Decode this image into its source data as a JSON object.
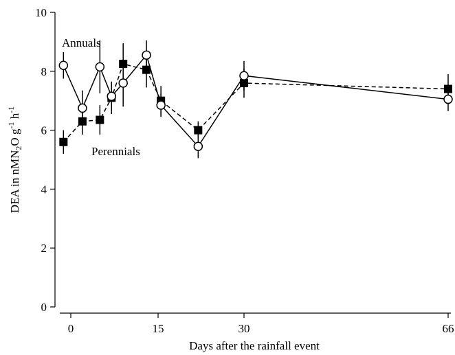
{
  "chart_data": {
    "type": "line",
    "title": "",
    "xlabel": "Days after the rainfall event",
    "ylabel": {
      "base": "DEA in nMN",
      "sub": "2",
      "mid": "O g",
      "sup1": "-1",
      "mid2": " h",
      "sup2": "-1"
    },
    "ylim": [
      0,
      10
    ],
    "yticks": [
      0,
      2,
      4,
      6,
      8,
      10
    ],
    "xticks": [
      0,
      15,
      30,
      66
    ],
    "x_display": {
      "breaks": [
        0,
        15,
        30,
        66
      ],
      "note": "x axis is piecewise-scaled; 30 to 66 segment is compressed"
    },
    "grid": false,
    "legend": "none",
    "annotations": [
      {
        "text": "Annuals",
        "x": 0,
        "y": 8.6
      },
      {
        "text": "Perennials",
        "x": 3,
        "y": 5.3
      }
    ],
    "series": [
      {
        "name": "Annuals",
        "line": "solid",
        "marker": "open-circle",
        "points": [
          {
            "x": -1,
            "y": 8.2,
            "err": 0.45
          },
          {
            "x": 2,
            "y": 6.75,
            "err": 0.6
          },
          {
            "x": 5,
            "y": 8.15,
            "err": 0.9
          },
          {
            "x": 7,
            "y": 7.15,
            "err": 0.4
          },
          {
            "x": 9,
            "y": 7.6,
            "err": 0.8
          },
          {
            "x": 13,
            "y": 8.55,
            "err": 0.5
          },
          {
            "x": 15.5,
            "y": 6.85,
            "err": 0.4
          },
          {
            "x": 22,
            "y": 5.45,
            "err": 0.4
          },
          {
            "x": 30,
            "y": 7.85,
            "err": 0.5
          },
          {
            "x": 66,
            "y": 7.05,
            "err": 0.4
          }
        ]
      },
      {
        "name": "Perennials",
        "line": "dashed",
        "marker": "filled-square",
        "points": [
          {
            "x": -1,
            "y": 5.6,
            "err": 0.4
          },
          {
            "x": 2,
            "y": 6.3,
            "err": 0.45
          },
          {
            "x": 5,
            "y": 6.35,
            "err": 0.5
          },
          {
            "x": 7,
            "y": 7.1,
            "err": 0.55
          },
          {
            "x": 9,
            "y": 8.25,
            "err": 0.7
          },
          {
            "x": 13,
            "y": 8.05,
            "err": 0.6
          },
          {
            "x": 15.5,
            "y": 7.0,
            "err": 0.5
          },
          {
            "x": 22,
            "y": 6.0,
            "err": 0.3
          },
          {
            "x": 30,
            "y": 7.6,
            "err": 0.5
          },
          {
            "x": 66,
            "y": 7.4,
            "err": 0.5
          }
        ]
      }
    ]
  }
}
